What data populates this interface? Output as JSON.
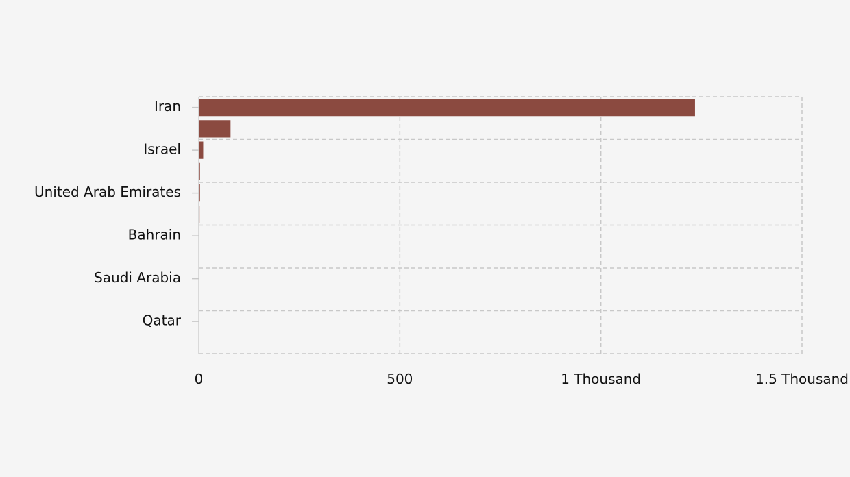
{
  "chart_data": {
    "type": "bar",
    "orientation": "horizontal",
    "title": "",
    "xlabel": "",
    "ylabel": "",
    "xlim": [
      0,
      1500
    ],
    "x_ticks": [
      {
        "value": 0,
        "label": "0"
      },
      {
        "value": 500,
        "label": "500"
      },
      {
        "value": 1000,
        "label": "1 Thousand"
      },
      {
        "value": 1500,
        "label": "1.5 Thousand"
      }
    ],
    "category_labels": [
      "Iran",
      "Israel",
      "United Arab Emirates",
      "Bahrain",
      "Saudi Arabia",
      "Qatar"
    ],
    "bars": [
      {
        "category": "Iran",
        "value": 1234
      },
      {
        "category": "",
        "value": 79
      },
      {
        "category": "Israel",
        "value": 11
      },
      {
        "category": "",
        "value": 3
      },
      {
        "category": "United Arab Emirates",
        "value": 3
      },
      {
        "category": "",
        "value": 2
      },
      {
        "category": "Bahrain",
        "value": 0
      },
      {
        "category": "",
        "value": 0
      },
      {
        "category": "Saudi Arabia",
        "value": 0
      },
      {
        "category": "",
        "value": 0
      },
      {
        "category": "Qatar",
        "value": 0
      },
      {
        "category": "",
        "value": 0
      }
    ],
    "bar_color": "#8b4a40",
    "grid": true,
    "grid_style": "dashed",
    "legend": "none"
  }
}
